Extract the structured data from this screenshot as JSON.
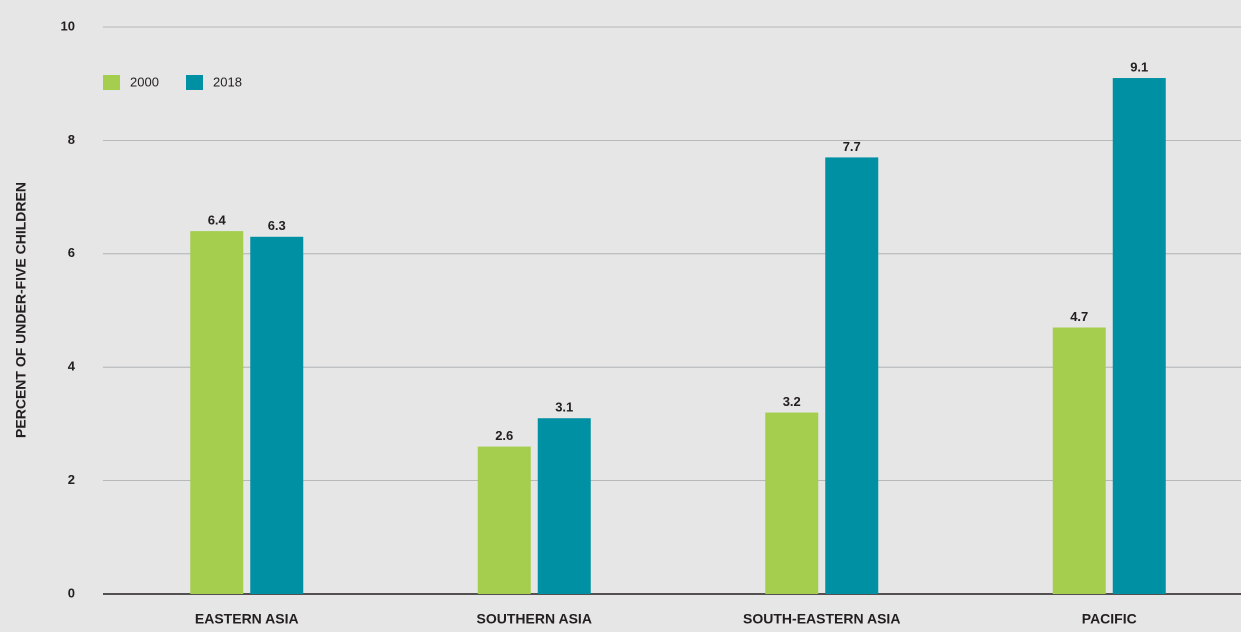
{
  "chart_data": {
    "type": "bar",
    "y_label": "PERCENT OF UNDER-FIVE CHILDREN",
    "categories": [
      "EASTERN ASIA",
      "SOUTHERN ASIA",
      "SOUTH-EASTERN ASIA",
      "PACIFIC"
    ],
    "series": [
      {
        "name": "2000",
        "color": "#a5cd4e",
        "values": [
          6.4,
          2.6,
          3.2,
          4.7
        ]
      },
      {
        "name": "2018",
        "color": "#0090a3",
        "values": [
          6.3,
          3.1,
          7.7,
          9.1
        ]
      }
    ],
    "ylim": [
      0,
      10
    ],
    "yticks": [
      0,
      2,
      4,
      6,
      8,
      10
    ],
    "grid": true,
    "legend": "top-left"
  }
}
